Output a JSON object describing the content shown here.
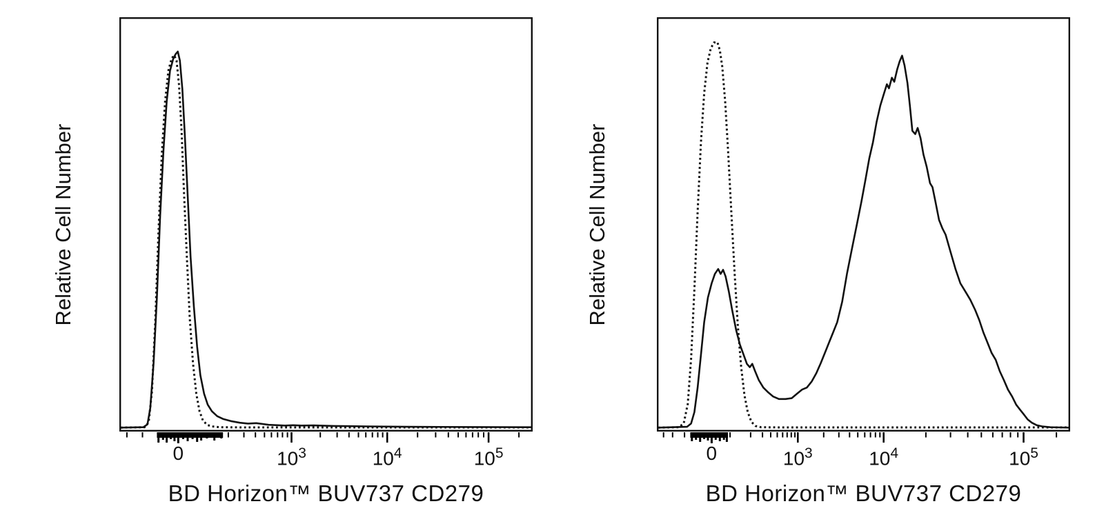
{
  "figure": {
    "background": "#ffffff",
    "line_color": "#111111",
    "description_visible_text_only": true
  },
  "chart_data": [
    {
      "type": "line",
      "panel": "left",
      "xlabel": "BD Horizon™ BUV737 CD279",
      "ylabel": "Relative Cell Number",
      "x_scale": "biexponential",
      "ylim": [
        0,
        1
      ],
      "grid": false,
      "legend": null,
      "x_ticks_major": [
        {
          "f": 0.14,
          "base": "0",
          "exp": ""
        },
        {
          "f": 0.416,
          "base": "10",
          "exp": "3"
        },
        {
          "f": 0.649,
          "base": "10",
          "exp": "4"
        },
        {
          "f": 0.896,
          "base": "10",
          "exp": "5"
        }
      ],
      "x_ticks_minor": [
        0.015,
        0.053,
        0.262,
        0.3,
        0.328,
        0.35,
        0.367,
        0.382,
        0.394,
        0.406,
        0.486,
        0.527,
        0.556,
        0.579,
        0.597,
        0.613,
        0.626,
        0.638,
        0.723,
        0.767,
        0.798,
        0.822,
        0.841,
        0.857,
        0.871,
        0.884,
        0.97
      ],
      "axis_cluster": {
        "from": 0.088,
        "to": 0.249,
        "height": 8,
        "spikes": [
          [
            0.092,
            15
          ],
          [
            0.103,
            11
          ],
          [
            0.112,
            15
          ],
          [
            0.122,
            10
          ],
          [
            0.131,
            13
          ],
          [
            0.14,
            16
          ],
          [
            0.152,
            10
          ],
          [
            0.163,
            13
          ],
          [
            0.175,
            10
          ],
          [
            0.186,
            14
          ],
          [
            0.196,
            12
          ],
          [
            0.21,
            9
          ],
          [
            0.228,
            12
          ],
          [
            0.245,
            9
          ]
        ]
      },
      "series": [
        {
          "name": "dotted-curve",
          "style": "dotted",
          "peak": {
            "x_value": "~0",
            "rel_height": 0.913
          },
          "points": [
            [
              0,
              0.002
            ],
            [
              0.058,
              0.003
            ],
            [
              0.068,
              0.015
            ],
            [
              0.076,
              0.09
            ],
            [
              0.084,
              0.26
            ],
            [
              0.092,
              0.48
            ],
            [
              0.1,
              0.67
            ],
            [
              0.108,
              0.8
            ],
            [
              0.116,
              0.875
            ],
            [
              0.124,
              0.905
            ],
            [
              0.13,
              0.913
            ],
            [
              0.136,
              0.9
            ],
            [
              0.142,
              0.84
            ],
            [
              0.148,
              0.73
            ],
            [
              0.154,
              0.58
            ],
            [
              0.161,
              0.42
            ],
            [
              0.168,
              0.27
            ],
            [
              0.176,
              0.16
            ],
            [
              0.184,
              0.085
            ],
            [
              0.192,
              0.042
            ],
            [
              0.2,
              0.02
            ],
            [
              0.21,
              0.009
            ],
            [
              0.222,
              0.005
            ],
            [
              0.24,
              0.003
            ],
            [
              0.3,
              0.0025
            ],
            [
              1,
              0.0025
            ]
          ]
        },
        {
          "name": "solid-curve",
          "style": "solid",
          "peak": {
            "x_value": "~0",
            "rel_height": 0.922
          },
          "points": [
            [
              0,
              0.002
            ],
            [
              0.055,
              0.003
            ],
            [
              0.065,
              0.01
            ],
            [
              0.072,
              0.05
            ],
            [
              0.08,
              0.16
            ],
            [
              0.088,
              0.32
            ],
            [
              0.096,
              0.52
            ],
            [
              0.104,
              0.68
            ],
            [
              0.112,
              0.8
            ],
            [
              0.12,
              0.875
            ],
            [
              0.128,
              0.905
            ],
            [
              0.134,
              0.916
            ],
            [
              0.139,
              0.922
            ],
            [
              0.144,
              0.9
            ],
            [
              0.15,
              0.83
            ],
            [
              0.156,
              0.72
            ],
            [
              0.163,
              0.57
            ],
            [
              0.17,
              0.42
            ],
            [
              0.178,
              0.3
            ],
            [
              0.186,
              0.2
            ],
            [
              0.194,
              0.13
            ],
            [
              0.203,
              0.085
            ],
            [
              0.212,
              0.058
            ],
            [
              0.222,
              0.042
            ],
            [
              0.235,
              0.03
            ],
            [
              0.25,
              0.023
            ],
            [
              0.268,
              0.018
            ],
            [
              0.29,
              0.014
            ],
            [
              0.31,
              0.012
            ],
            [
              0.33,
              0.013
            ],
            [
              0.36,
              0.009
            ],
            [
              0.4,
              0.007
            ],
            [
              0.42,
              0.008
            ],
            [
              0.44,
              0.007
            ],
            [
              0.47,
              0.0075
            ],
            [
              0.52,
              0.006
            ],
            [
              0.6,
              0.005
            ],
            [
              0.7,
              0.004
            ],
            [
              0.85,
              0.0035
            ],
            [
              1,
              0.003
            ]
          ]
        }
      ]
    },
    {
      "type": "line",
      "panel": "right",
      "xlabel": "BD Horizon™ BUV737 CD279",
      "ylabel": "Relative Cell Number",
      "x_scale": "biexponential",
      "ylim": [
        0,
        1
      ],
      "grid": false,
      "legend": null,
      "x_ticks_major": [
        {
          "f": 0.13,
          "base": "0",
          "exp": ""
        },
        {
          "f": 0.34,
          "base": "10",
          "exp": "3"
        },
        {
          "f": 0.549,
          "base": "10",
          "exp": "4"
        },
        {
          "f": 0.89,
          "base": "10",
          "exp": "5"
        }
      ],
      "x_ticks_minor": [
        0.013,
        0.035,
        0.064,
        0.175,
        0.225,
        0.254,
        0.274,
        0.29,
        0.303,
        0.314,
        0.324,
        0.333,
        0.403,
        0.44,
        0.466,
        0.486,
        0.503,
        0.517,
        0.529,
        0.54,
        0.652,
        0.712,
        0.754,
        0.787,
        0.815,
        0.838,
        0.858,
        0.876,
        0.97
      ],
      "axis_cluster": {
        "from": 0.078,
        "to": 0.17,
        "height": 8,
        "spikes": [
          [
            0.082,
            13
          ],
          [
            0.092,
            11
          ],
          [
            0.102,
            14
          ],
          [
            0.112,
            10
          ],
          [
            0.121,
            12
          ],
          [
            0.13,
            16
          ],
          [
            0.14,
            11
          ],
          [
            0.15,
            13
          ],
          [
            0.16,
            11
          ],
          [
            0.167,
            14
          ]
        ]
      },
      "series": [
        {
          "name": "dotted-curve",
          "style": "dotted",
          "peak": {
            "x_value": "~0",
            "rel_height": 0.945
          },
          "points": [
            [
              0,
              0.002
            ],
            [
              0.05,
              0.003
            ],
            [
              0.062,
              0.012
            ],
            [
              0.072,
              0.06
            ],
            [
              0.08,
              0.17
            ],
            [
              0.088,
              0.34
            ],
            [
              0.096,
              0.53
            ],
            [
              0.104,
              0.7
            ],
            [
              0.112,
              0.82
            ],
            [
              0.12,
              0.895
            ],
            [
              0.128,
              0.93
            ],
            [
              0.136,
              0.944
            ],
            [
              0.144,
              0.945
            ],
            [
              0.15,
              0.925
            ],
            [
              0.156,
              0.885
            ],
            [
              0.163,
              0.8
            ],
            [
              0.17,
              0.68
            ],
            [
              0.178,
              0.53
            ],
            [
              0.186,
              0.38
            ],
            [
              0.194,
              0.25
            ],
            [
              0.202,
              0.15
            ],
            [
              0.21,
              0.082
            ],
            [
              0.218,
              0.04
            ],
            [
              0.227,
              0.016
            ],
            [
              0.237,
              0.006
            ],
            [
              0.25,
              0.003
            ],
            [
              0.3,
              0.0025
            ],
            [
              1,
              0.0025
            ]
          ]
        },
        {
          "name": "solid-curve",
          "style": "solid",
          "peak": {
            "x_value": "~6e3 (main), small peak ~0-100",
            "rel_height": 0.912
          },
          "points": [
            [
              0,
              0.002
            ],
            [
              0.07,
              0.004
            ],
            [
              0.08,
              0.012
            ],
            [
              0.088,
              0.04
            ],
            [
              0.096,
              0.1
            ],
            [
              0.104,
              0.18
            ],
            [
              0.112,
              0.26
            ],
            [
              0.121,
              0.32
            ],
            [
              0.13,
              0.355
            ],
            [
              0.138,
              0.378
            ],
            [
              0.146,
              0.39
            ],
            [
              0.152,
              0.378
            ],
            [
              0.158,
              0.388
            ],
            [
              0.164,
              0.372
            ],
            [
              0.172,
              0.335
            ],
            [
              0.18,
              0.29
            ],
            [
              0.19,
              0.24
            ],
            [
              0.199,
              0.205
            ],
            [
              0.208,
              0.18
            ],
            [
              0.216,
              0.158
            ],
            [
              0.223,
              0.15
            ],
            [
              0.229,
              0.158
            ],
            [
              0.236,
              0.14
            ],
            [
              0.245,
              0.118
            ],
            [
              0.256,
              0.1
            ],
            [
              0.268,
              0.088
            ],
            [
              0.28,
              0.078
            ],
            [
              0.294,
              0.072
            ],
            [
              0.31,
              0.072
            ],
            [
              0.325,
              0.074
            ],
            [
              0.338,
              0.085
            ],
            [
              0.35,
              0.095
            ],
            [
              0.362,
              0.1
            ],
            [
              0.374,
              0.115
            ],
            [
              0.385,
              0.135
            ],
            [
              0.396,
              0.16
            ],
            [
              0.406,
              0.185
            ],
            [
              0.416,
              0.21
            ],
            [
              0.426,
              0.235
            ],
            [
              0.436,
              0.26
            ],
            [
              0.448,
              0.31
            ],
            [
              0.46,
              0.38
            ],
            [
              0.472,
              0.44
            ],
            [
              0.484,
              0.5
            ],
            [
              0.495,
              0.555
            ],
            [
              0.505,
              0.61
            ],
            [
              0.514,
              0.66
            ],
            [
              0.523,
              0.7
            ],
            [
              0.532,
              0.75
            ],
            [
              0.541,
              0.79
            ],
            [
              0.55,
              0.82
            ],
            [
              0.557,
              0.842
            ],
            [
              0.562,
              0.832
            ],
            [
              0.569,
              0.858
            ],
            [
              0.575,
              0.848
            ],
            [
              0.582,
              0.878
            ],
            [
              0.588,
              0.898
            ],
            [
              0.594,
              0.912
            ],
            [
              0.6,
              0.888
            ],
            [
              0.607,
              0.845
            ],
            [
              0.613,
              0.79
            ],
            [
              0.619,
              0.728
            ],
            [
              0.626,
              0.72
            ],
            [
              0.632,
              0.735
            ],
            [
              0.639,
              0.71
            ],
            [
              0.646,
              0.67
            ],
            [
              0.654,
              0.64
            ],
            [
              0.662,
              0.6
            ],
            [
              0.668,
              0.59
            ],
            [
              0.675,
              0.556
            ],
            [
              0.684,
              0.51
            ],
            [
              0.692,
              0.49
            ],
            [
              0.7,
              0.474
            ],
            [
              0.712,
              0.432
            ],
            [
              0.724,
              0.39
            ],
            [
              0.736,
              0.355
            ],
            [
              0.748,
              0.335
            ],
            [
              0.76,
              0.315
            ],
            [
              0.772,
              0.29
            ],
            [
              0.782,
              0.265
            ],
            [
              0.792,
              0.235
            ],
            [
              0.802,
              0.21
            ],
            [
              0.812,
              0.185
            ],
            [
              0.822,
              0.168
            ],
            [
              0.832,
              0.14
            ],
            [
              0.842,
              0.118
            ],
            [
              0.852,
              0.095
            ],
            [
              0.862,
              0.078
            ],
            [
              0.872,
              0.058
            ],
            [
              0.882,
              0.045
            ],
            [
              0.89,
              0.035
            ],
            [
              0.9,
              0.022
            ],
            [
              0.91,
              0.014
            ],
            [
              0.922,
              0.008
            ],
            [
              0.935,
              0.005
            ],
            [
              0.955,
              0.003
            ],
            [
              1,
              0.002
            ]
          ]
        }
      ]
    }
  ]
}
